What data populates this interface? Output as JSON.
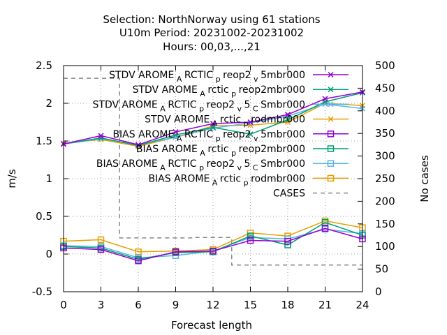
{
  "chart_data": {
    "type": "line",
    "title_lines": [
      "Selection: NorthNorway using    61 stations",
      "U10m   Period: 20231002-20231002",
      "Hours:  00,03,...,21"
    ],
    "xlabel": "Forecast length",
    "ylabel": "m/s",
    "y2label": "No cases",
    "x": [
      0,
      3,
      6,
      9,
      12,
      15,
      18,
      21,
      24
    ],
    "xlim": [
      0,
      24
    ],
    "ylim": [
      -0.5,
      2.5
    ],
    "y2lim": [
      0,
      500
    ],
    "xticks": [
      "0",
      "3",
      "6",
      "9",
      "12",
      "15",
      "18",
      "21",
      "24"
    ],
    "yticks": [
      "-0.5",
      "0",
      "0.5",
      "1",
      "1.5",
      "2",
      "2.5"
    ],
    "y2ticks": [
      "0",
      "50",
      "100",
      "150",
      "200",
      "250",
      "300",
      "350",
      "400",
      "450",
      "500"
    ],
    "grid": true,
    "legend_position": "top-right",
    "series": [
      {
        "legend": [
          "STDV AROME",
          "A",
          "RCTIC",
          "p",
          "reop2",
          "v",
          "5mbr000"
        ],
        "color": "#9400d3",
        "marker": "x",
        "axis": "y",
        "values": [
          1.46,
          1.57,
          1.45,
          1.62,
          1.73,
          1.75,
          1.85,
          2.06,
          2.15
        ]
      },
      {
        "legend": [
          "STDV AROME",
          "A",
          "rctic",
          "p",
          "reop2mbr000"
        ],
        "color": "#009e73",
        "marker": "x",
        "axis": "y",
        "values": [
          1.46,
          1.54,
          1.44,
          1.58,
          1.68,
          1.59,
          1.78,
          2.02,
          2.14
        ]
      },
      {
        "legend": [
          "STDV AROME",
          "A",
          "RCTIC",
          "p",
          "reop2",
          "v",
          "5",
          "C",
          "Smbr000"
        ],
        "color": "#56b4e9",
        "marker": "x",
        "axis": "y",
        "values": [
          1.46,
          1.53,
          1.45,
          1.55,
          1.67,
          1.74,
          1.83,
          1.99,
          1.93
        ]
      },
      {
        "legend": [
          "STDV AROME",
          "A",
          "rctic",
          "p",
          "rodmbr000"
        ],
        "color": "#e69f00",
        "marker": "x",
        "axis": "y",
        "values": [
          1.47,
          1.52,
          1.43,
          1.55,
          1.7,
          1.71,
          1.75,
          2.0,
          1.97
        ]
      },
      {
        "legend": [
          "BIAS AROME",
          "A",
          "RCTIC",
          "p",
          "reop2",
          "v",
          "5mbr000"
        ],
        "color": "#9400d3",
        "marker": "square",
        "axis": "y",
        "values": [
          0.08,
          0.06,
          -0.09,
          0.03,
          0.04,
          0.18,
          0.17,
          0.34,
          0.2
        ]
      },
      {
        "legend": [
          "BIAS AROME",
          "A",
          "rctic",
          "p",
          "reop2mbr000"
        ],
        "color": "#009e73",
        "marker": "square",
        "axis": "y",
        "values": [
          0.1,
          0.08,
          -0.07,
          0.02,
          0.03,
          0.24,
          0.12,
          0.42,
          0.25
        ]
      },
      {
        "legend": [
          "BIAS AROME",
          "A",
          "RCTIC",
          "p",
          "reop2",
          "v",
          "5",
          "C",
          "Smbr000"
        ],
        "color": "#56b4e9",
        "marker": "square",
        "axis": "y",
        "values": [
          0.11,
          0.1,
          -0.05,
          -0.02,
          0.04,
          0.22,
          0.2,
          0.33,
          0.27
        ]
      },
      {
        "legend": [
          "BIAS AROME",
          "A",
          "rctic",
          "p",
          "rodmbr000"
        ],
        "color": "#e69f00",
        "marker": "square",
        "axis": "y",
        "values": [
          0.17,
          0.19,
          0.03,
          0.04,
          0.06,
          0.28,
          0.24,
          0.44,
          0.35
        ]
      },
      {
        "legend": [
          "CASES"
        ],
        "color": "#888888",
        "marker": "none",
        "dashed": true,
        "axis": "y2",
        "step": true,
        "values": [
          472,
          472,
          119,
          119,
          120,
          59,
          59,
          59,
          59
        ]
      }
    ]
  }
}
